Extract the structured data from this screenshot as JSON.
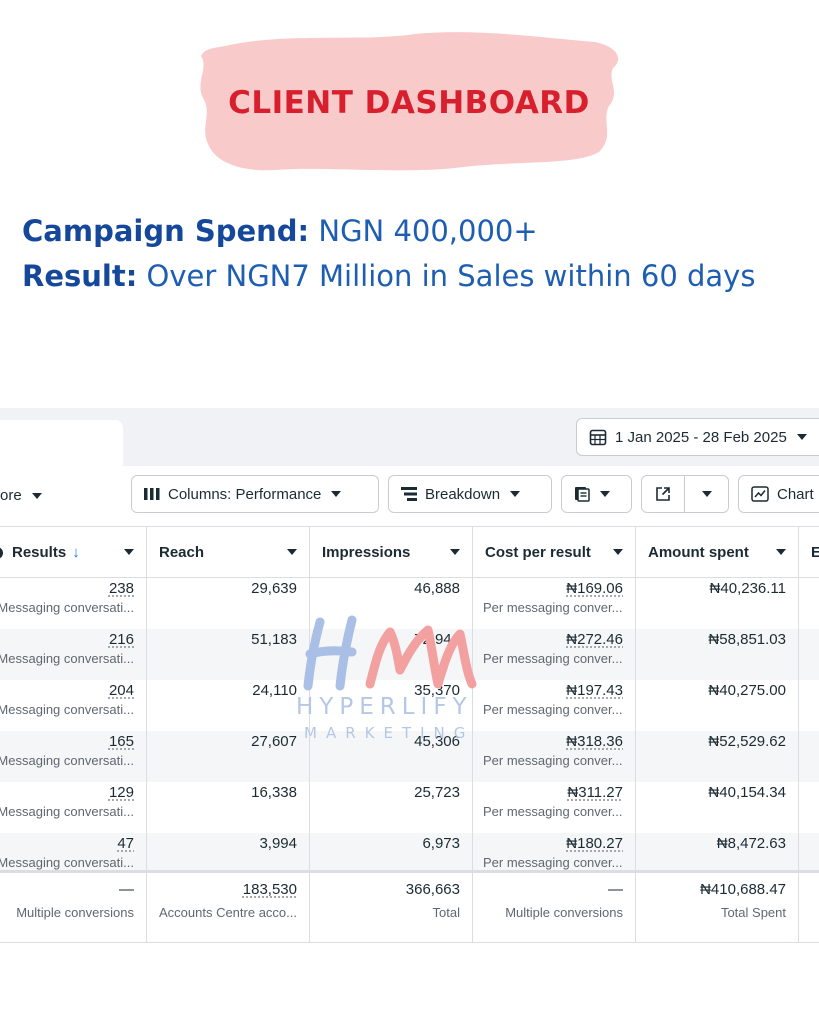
{
  "banner": {
    "title": "CLIENT DASHBOARD"
  },
  "headline": {
    "spend_label": "Campaign Spend:",
    "spend_value": "NGN 400,000+",
    "result_label": "Result:",
    "result_value": "Over NGN7 Million in Sales within 60 days"
  },
  "date_range": "1 Jan 2025 - 28 Feb 2025",
  "toolbar": {
    "more_label": "ore",
    "columns_label": "Columns: Performance",
    "breakdown_label": "Breakdown",
    "chart_label": "Chart"
  },
  "table": {
    "headers": [
      "Results",
      "Reach",
      "Impressions",
      "Cost per result",
      "Amount spent",
      "E"
    ],
    "rows": [
      {
        "results": "238",
        "results_sub": "Messaging conversati...",
        "reach": "29,639",
        "impressions": "46,888",
        "cost": "₦169.06",
        "cost_sub": "Per messaging conver...",
        "spent": "₦40,236.11"
      },
      {
        "results": "216",
        "results_sub": "Messaging conversati...",
        "reach": "51,183",
        "impressions": "72,946",
        "cost": "₦272.46",
        "cost_sub": "Per messaging conver...",
        "spent": "₦58,851.03"
      },
      {
        "results": "204",
        "results_sub": "Messaging conversati...",
        "reach": "24,110",
        "impressions": "35,370",
        "cost": "₦197.43",
        "cost_sub": "Per messaging conver...",
        "spent": "₦40,275.00"
      },
      {
        "results": "165",
        "results_sub": "Messaging conversati...",
        "reach": "27,607",
        "impressions": "45,306",
        "cost": "₦318.36",
        "cost_sub": "Per messaging conver...",
        "spent": "₦52,529.62"
      },
      {
        "results": "129",
        "results_sub": "Messaging conversati...",
        "reach": "16,338",
        "impressions": "25,723",
        "cost": "₦311.27",
        "cost_sub": "Per messaging conver...",
        "spent": "₦40,154.34"
      },
      {
        "results": "47",
        "results_sub": "Messaging conversati...",
        "reach": "3,994",
        "impressions": "6,973",
        "cost": "₦180.27",
        "cost_sub": "Per messaging conver...",
        "spent": "₦8,472.63"
      }
    ],
    "total": {
      "results": "—",
      "results_sub": "Multiple conversions",
      "reach": "183,530",
      "reach_sub": "Accounts Centre acco...",
      "impressions": "366,663",
      "impressions_sub": "Total",
      "cost": "—",
      "cost_sub": "Multiple conversions",
      "spent": "₦410,688.47",
      "spent_sub": "Total Spent"
    }
  },
  "watermark": {
    "logo_letters": "HM",
    "brand": "HYPERLIFY",
    "tagline": "MARKETING"
  },
  "colors": {
    "banner_bg": "#f9caca",
    "banner_text": "#d71f2e",
    "headline_blue": "#1d5eb3",
    "accent": "#1877f2"
  },
  "icons": [
    "calendar-icon",
    "columns-icon",
    "breakdown-icon",
    "report-icon",
    "export-icon",
    "chart-icon",
    "sort-arrow-icon",
    "info-icon"
  ]
}
